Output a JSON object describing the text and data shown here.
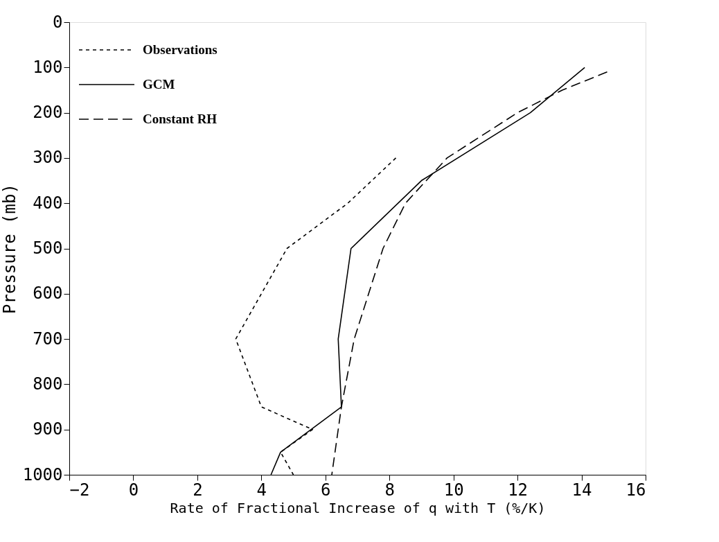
{
  "chart_data": {
    "type": "line",
    "xlabel": "Rate of Fractional Increase of q with T (%/K)",
    "ylabel": "Pressure (mb)",
    "xlim": [
      -2,
      16
    ],
    "xticks": [
      -2,
      0,
      2,
      4,
      6,
      8,
      10,
      12,
      14,
      16
    ],
    "ylim": [
      1000,
      0
    ],
    "yticks": [
      0,
      100,
      200,
      300,
      400,
      500,
      600,
      700,
      800,
      900,
      1000
    ],
    "legend": "top left",
    "grid": false,
    "marker": "none",
    "series": [
      {
        "name": "Observations",
        "color": "#000000",
        "line_style": "dotted",
        "x": [
          8.2,
          6.7,
          4.8,
          3.2,
          4.0,
          5.6,
          4.6,
          5.0
        ],
        "values": [
          300,
          400,
          500,
          700,
          850,
          900,
          950,
          1000
        ]
      },
      {
        "name": "GCM",
        "color": "#000000",
        "line_style": "solid",
        "x": [
          14.1,
          12.4,
          9.0,
          6.8,
          6.4,
          6.5,
          4.6,
          4.3
        ],
        "values": [
          100,
          200,
          350,
          500,
          700,
          850,
          950,
          1000
        ]
      },
      {
        "name": "Constant RH",
        "color": "#000000",
        "line_style": "dashed",
        "x": [
          14.8,
          13.4,
          12.0,
          9.8,
          8.5,
          7.8,
          6.9,
          6.5,
          6.2
        ],
        "values": [
          110,
          150,
          200,
          300,
          400,
          500,
          700,
          850,
          1000
        ]
      }
    ]
  }
}
